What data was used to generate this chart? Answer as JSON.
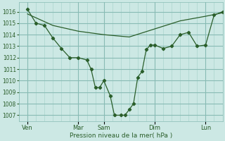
{
  "xlabel": "Pression niveau de la mer( hPa )",
  "bg_color": "#cce8e4",
  "grid_color_minor": "#aad4ce",
  "grid_color_major": "#88bbb4",
  "line_color": "#2a5e2a",
  "ylim": [
    1006.5,
    1016.8
  ],
  "xlim": [
    0,
    192
  ],
  "yticks": [
    1007,
    1008,
    1009,
    1010,
    1011,
    1012,
    1013,
    1014,
    1015,
    1016
  ],
  "day_labels": [
    "Ven",
    "Mar",
    "Sam",
    "Dim",
    "Lun"
  ],
  "day_positions": [
    8,
    56,
    80,
    128,
    176
  ],
  "smooth_x": [
    8,
    32,
    56,
    80,
    104,
    128,
    152,
    176,
    192
  ],
  "smooth_y": [
    1015.8,
    1014.8,
    1014.3,
    1014.0,
    1013.8,
    1014.5,
    1015.2,
    1015.6,
    1015.9
  ],
  "jagged_x": [
    8,
    16,
    24,
    32,
    40,
    48,
    56,
    64,
    68,
    72,
    76,
    80,
    86,
    90,
    96,
    100,
    104,
    108,
    112,
    116,
    120,
    124,
    128,
    136,
    144,
    152,
    160,
    168,
    176,
    184,
    192
  ],
  "jagged_y": [
    1016.2,
    1015.0,
    1014.8,
    1013.7,
    1012.8,
    1012.0,
    1012.0,
    1011.8,
    1011.0,
    1009.4,
    1009.4,
    1010.0,
    1008.7,
    1007.0,
    1007.0,
    1007.0,
    1007.5,
    1008.0,
    1010.3,
    1010.8,
    1012.7,
    1013.1,
    1013.1,
    1012.8,
    1013.0,
    1014.0,
    1014.2,
    1013.0,
    1013.1,
    1015.7,
    1016.0
  ]
}
